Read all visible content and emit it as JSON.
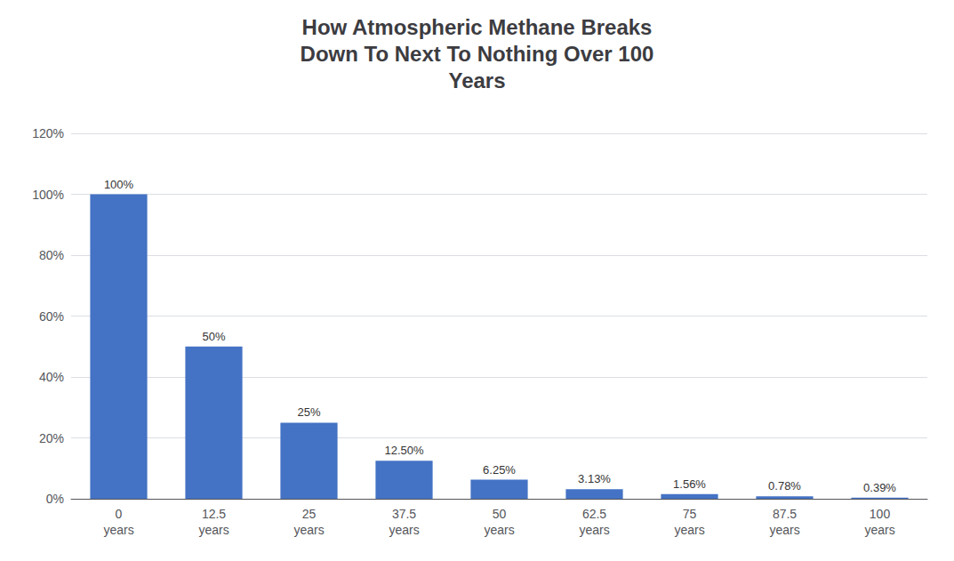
{
  "chart_data": {
    "type": "bar",
    "title": "How Atmospheric Methane Breaks\nDown To Next To Nothing Over 100\nYears",
    "categories": [
      "0\nyears",
      "12.5\nyears",
      "25\nyears",
      "37.5\nyears",
      "50\nyears",
      "62.5\nyears",
      "75\nyears",
      "87.5\nyears",
      "100\nyears"
    ],
    "values": [
      100,
      50,
      25,
      12.5,
      6.25,
      3.13,
      1.56,
      0.78,
      0.39
    ],
    "value_labels": [
      "100%",
      "50%",
      "25%",
      "12.50%",
      "6.25%",
      "3.13%",
      "1.56%",
      "0.78%",
      "0.39%"
    ],
    "data_labels": true,
    "color": "#4472C4",
    "ylim": [
      0,
      120
    ],
    "yticks": [
      {
        "value": 0,
        "label": "0%"
      },
      {
        "value": 20,
        "label": "20%"
      },
      {
        "value": 40,
        "label": "40%"
      },
      {
        "value": 60,
        "label": "60%"
      },
      {
        "value": 80,
        "label": "80%"
      },
      {
        "value": 100,
        "label": "100%"
      },
      {
        "value": 120,
        "label": "120%"
      }
    ],
    "grid": true
  }
}
